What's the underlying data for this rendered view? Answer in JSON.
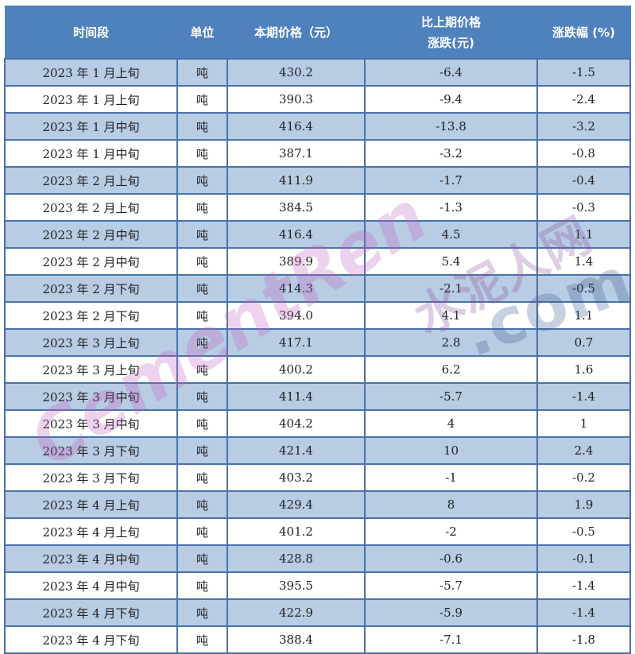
{
  "table": {
    "headers": [
      "时间段",
      "单位",
      "本期价格（元）",
      "比上期价格\n涨跌(元)",
      "涨跌幅 (%)"
    ],
    "header_change_line1": "比上期价格",
    "header_change_line2": "涨跌(元)",
    "rows": [
      [
        "2023 年 1 月上旬",
        "吨",
        "430.2",
        "-6.4",
        "-1.5"
      ],
      [
        "2023 年 1 月上旬",
        "吨",
        "390.3",
        "-9.4",
        "-2.4"
      ],
      [
        "2023 年 1 月中旬",
        "吨",
        "416.4",
        "-13.8",
        "-3.2"
      ],
      [
        "2023 年 1 月中旬",
        "吨",
        "387.1",
        "-3.2",
        "-0.8"
      ],
      [
        "2023 年 2 月上旬",
        "吨",
        "411.9",
        "-1.7",
        "-0.4"
      ],
      [
        "2023 年 2 月上旬",
        "吨",
        "384.5",
        "-1.3",
        "-0.3"
      ],
      [
        "2023 年 2 月中旬",
        "吨",
        "416.4",
        "4.5",
        "1.1"
      ],
      [
        "2023 年 2 月中旬",
        "吨",
        "389.9",
        "5.4",
        "1.4"
      ],
      [
        "2023 年 2 月下旬",
        "吨",
        "414.3",
        "-2.1",
        "-0.5"
      ],
      [
        "2023 年 2 月下旬",
        "吨",
        "394.0",
        "4.1",
        "1.1"
      ],
      [
        "2023 年 3 月上旬",
        "吨",
        "417.1",
        "2.8",
        "0.7"
      ],
      [
        "2023 年 3 月上旬",
        "吨",
        "400.2",
        "6.2",
        "1.6"
      ],
      [
        "2023 年 3 月中旬",
        "吨",
        "411.4",
        "-5.7",
        "-1.4"
      ],
      [
        "2023 年 3 月中旬",
        "吨",
        "404.2",
        "4",
        "1"
      ],
      [
        "2023 年 3 月下旬",
        "吨",
        "421.4",
        "10",
        "2.4"
      ],
      [
        "2023 年 3 月下旬",
        "吨",
        "403.2",
        "-1",
        "-0.2"
      ],
      [
        "2023 年 4 月上旬",
        "吨",
        "429.4",
        "8",
        "1.9"
      ],
      [
        "2023 年 4 月上旬",
        "吨",
        "401.2",
        "-2",
        "-0.5"
      ],
      [
        "2023 年 4 月中旬",
        "吨",
        "428.8",
        "-0.6",
        "-0.1"
      ],
      [
        "2023 年 4 月中旬",
        "吨",
        "395.5",
        "-5.7",
        "-1.4"
      ],
      [
        "2023 年 4 月下旬",
        "吨",
        "422.9",
        "-5.9",
        "-1.4"
      ],
      [
        "2023 年 4 月下旬",
        "吨",
        "388.4",
        "-7.1",
        "-1.8"
      ]
    ]
  },
  "watermark": {
    "latin": "CementRen",
    "cn": "水泥人网",
    ".com": ".com"
  },
  "colors": {
    "header_bg": "#4f81bd",
    "band": "#b8cce4",
    "border": "#4a72a8"
  }
}
